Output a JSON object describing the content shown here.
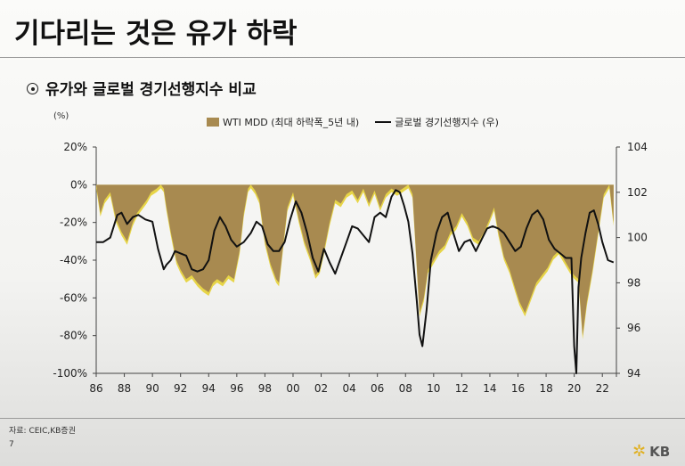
{
  "page": {
    "title": "기다리는 것은 유가 하락",
    "subtitle": "유가와 글로벌 경기선행지수 비교",
    "source": "자료: CEIC,KB증권",
    "page_number": "7",
    "logo_text": "KB"
  },
  "chart_data": {
    "type": "area",
    "left_unit": "(%)",
    "legend": [
      "WTI MDD (최대 하락폭_5년 내)",
      "글로벌 경기선행지수 (우)"
    ],
    "x_ticks": [
      "86",
      "88",
      "90",
      "92",
      "94",
      "96",
      "98",
      "00",
      "02",
      "04",
      "06",
      "08",
      "10",
      "12",
      "14",
      "16",
      "18",
      "20",
      "22"
    ],
    "x_range": [
      1986,
      2023
    ],
    "y_left_ticks": [
      "20%",
      "0%",
      "-20%",
      "-40%",
      "-60%",
      "-80%",
      "-100%"
    ],
    "y_left_range": [
      -100,
      20
    ],
    "y_right_ticks": [
      "104",
      "102",
      "100",
      "98",
      "96",
      "94"
    ],
    "y_right_range": [
      94,
      104
    ],
    "colors": {
      "area": "#a88a50",
      "area_highlight": "#e7d548",
      "line": "#111111"
    },
    "series": [
      {
        "name": "WTI MDD (최대 하락폭_5년 내)",
        "axis": "left",
        "x": [
          1986.0,
          1986.3,
          1986.6,
          1987.0,
          1987.4,
          1987.8,
          1988.2,
          1988.6,
          1988.9,
          1989.2,
          1989.6,
          1989.9,
          1990.3,
          1990.6,
          1990.8,
          1991.0,
          1991.3,
          1991.7,
          1992.0,
          1992.4,
          1992.8,
          1993.2,
          1993.6,
          1994.0,
          1994.3,
          1994.6,
          1995.0,
          1995.4,
          1995.8,
          1996.2,
          1996.5,
          1996.8,
          1997.0,
          1997.3,
          1997.6,
          1998.0,
          1998.4,
          1998.8,
          1999.0,
          1999.3,
          1999.6,
          2000.0,
          2000.4,
          2000.8,
          2001.2,
          2001.6,
          2001.9,
          2002.2,
          2002.6,
          2003.0,
          2003.4,
          2003.8,
          2004.2,
          2004.6,
          2005.0,
          2005.4,
          2005.8,
          2006.2,
          2006.6,
          2007.0,
          2007.4,
          2007.8,
          2008.2,
          2008.5,
          2008.7,
          2009.0,
          2009.3,
          2009.6,
          2010.0,
          2010.4,
          2010.8,
          2011.2,
          2011.6,
          2012.0,
          2012.4,
          2012.8,
          2013.2,
          2013.6,
          2014.0,
          2014.3,
          2014.6,
          2015.0,
          2015.4,
          2015.8,
          2016.1,
          2016.5,
          2016.9,
          2017.3,
          2017.7,
          2018.1,
          2018.5,
          2018.9,
          2019.3,
          2019.7,
          2020.0,
          2020.3,
          2020.6,
          2020.9,
          2021.3,
          2021.7,
          2022.1,
          2022.5,
          2022.8
        ],
        "values": [
          0,
          -15,
          -8,
          -4,
          -18,
          -25,
          -30,
          -20,
          -15,
          -12,
          -8,
          -4,
          -2,
          0,
          -2,
          -12,
          -25,
          -40,
          -45,
          -50,
          -48,
          -52,
          -55,
          -57,
          -52,
          -50,
          -52,
          -48,
          -50,
          -35,
          -15,
          -2,
          0,
          -3,
          -8,
          -30,
          -42,
          -50,
          -52,
          -32,
          -12,
          -4,
          -18,
          -30,
          -38,
          -48,
          -45,
          -35,
          -20,
          -8,
          -10,
          -5,
          -3,
          -8,
          -2,
          -10,
          -3,
          -12,
          -5,
          -2,
          -4,
          -2,
          0,
          -5,
          -30,
          -68,
          -60,
          -45,
          -40,
          -35,
          -32,
          -25,
          -22,
          -15,
          -20,
          -28,
          -30,
          -25,
          -18,
          -12,
          -25,
          -38,
          -45,
          -55,
          -62,
          -68,
          -60,
          -52,
          -48,
          -44,
          -38,
          -35,
          -40,
          -45,
          -48,
          -50,
          -80,
          -62,
          -45,
          -25,
          -5,
          0,
          -20
        ]
      },
      {
        "name": "글로벌 경기선행지수 (우)",
        "axis": "right",
        "x": [
          1986.0,
          1986.5,
          1987.0,
          1987.5,
          1987.8,
          1988.2,
          1988.6,
          1989.0,
          1989.5,
          1990.0,
          1990.4,
          1990.8,
          1991.0,
          1991.3,
          1991.6,
          1992.0,
          1992.4,
          1992.8,
          1993.2,
          1993.6,
          1994.0,
          1994.4,
          1994.8,
          1995.2,
          1995.6,
          1996.0,
          1996.5,
          1997.0,
          1997.4,
          1997.8,
          1998.2,
          1998.6,
          1999.0,
          1999.4,
          1999.8,
          2000.2,
          2000.6,
          2001.0,
          2001.4,
          2001.8,
          2002.2,
          2002.6,
          2003.0,
          2003.4,
          2003.8,
          2004.2,
          2004.6,
          2005.0,
          2005.4,
          2005.8,
          2006.2,
          2006.6,
          2007.0,
          2007.3,
          2007.6,
          2007.9,
          2008.2,
          2008.5,
          2008.8,
          2009.0,
          2009.2,
          2009.5,
          2009.8,
          2010.2,
          2010.6,
          2011.0,
          2011.4,
          2011.8,
          2012.2,
          2012.6,
          2013.0,
          2013.4,
          2013.8,
          2014.2,
          2014.6,
          2015.0,
          2015.4,
          2015.8,
          2016.2,
          2016.6,
          2017.0,
          2017.4,
          2017.8,
          2018.2,
          2018.6,
          2019.0,
          2019.4,
          2019.8,
          2020.0,
          2020.15,
          2020.3,
          2020.5,
          2020.8,
          2021.1,
          2021.4,
          2021.7,
          2022.0,
          2022.4,
          2022.8
        ],
        "values": [
          99.8,
          99.8,
          100.0,
          101.0,
          101.1,
          100.6,
          100.9,
          101.0,
          100.8,
          100.7,
          99.5,
          98.6,
          98.8,
          99.0,
          99.4,
          99.3,
          99.2,
          98.6,
          98.5,
          98.6,
          99.0,
          100.3,
          100.9,
          100.5,
          99.9,
          99.6,
          99.8,
          100.2,
          100.7,
          100.5,
          99.7,
          99.4,
          99.4,
          99.8,
          100.8,
          101.6,
          101.1,
          100.2,
          99.1,
          98.5,
          99.5,
          98.9,
          98.4,
          99.1,
          99.8,
          100.5,
          100.4,
          100.1,
          99.8,
          100.9,
          101.1,
          100.9,
          101.8,
          102.1,
          102.0,
          101.4,
          100.7,
          99.3,
          97.2,
          95.7,
          95.2,
          96.8,
          99.0,
          100.2,
          100.9,
          101.1,
          100.2,
          99.4,
          99.8,
          99.9,
          99.4,
          99.9,
          100.4,
          100.5,
          100.4,
          100.2,
          99.8,
          99.4,
          99.6,
          100.4,
          101.0,
          101.2,
          100.8,
          99.9,
          99.5,
          99.3,
          99.1,
          99.1,
          95.2,
          94.0,
          97.8,
          99.1,
          100.2,
          101.1,
          101.2,
          100.6,
          99.8,
          99.0,
          98.9
        ]
      }
    ]
  }
}
